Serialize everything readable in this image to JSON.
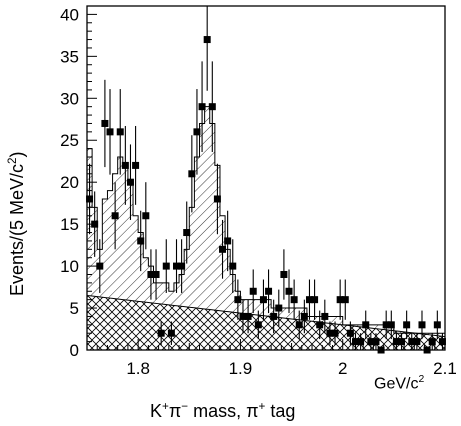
{
  "chart_data": {
    "type": "histogram_with_points",
    "xlabel_unit": "GeV/c²",
    "xtitle": "K⁺π⁻ mass, π⁺ tag",
    "ylabel": "Events/(5 MeV/c²)",
    "xlim": [
      1.75,
      2.1
    ],
    "ylim": [
      0,
      41
    ],
    "xticks": [
      "1.8",
      "1.9",
      "2",
      "2.1"
    ],
    "yticks": [
      "0",
      "5",
      "10",
      "15",
      "20",
      "25",
      "30",
      "35",
      "40"
    ],
    "bin_width": 0.005,
    "data_points": {
      "x": [
        1.7525,
        1.7575,
        1.7625,
        1.7675,
        1.7725,
        1.7775,
        1.7825,
        1.7875,
        1.7925,
        1.7975,
        1.8025,
        1.8075,
        1.8125,
        1.8175,
        1.8225,
        1.8275,
        1.8325,
        1.8375,
        1.8425,
        1.8475,
        1.8525,
        1.8575,
        1.8625,
        1.8675,
        1.8725,
        1.8775,
        1.8825,
        1.8875,
        1.8925,
        1.8975,
        1.9025,
        1.9075,
        1.9125,
        1.9175,
        1.9225,
        1.9275,
        1.9325,
        1.9375,
        1.9425,
        1.9475,
        1.9525,
        1.9575,
        1.9625,
        1.9675,
        1.9725,
        1.9775,
        1.9825,
        1.9875,
        1.9925,
        1.9975,
        2.0025,
        2.0075,
        2.0125,
        2.0175,
        2.0225,
        2.0275,
        2.0325,
        2.0375,
        2.0425,
        2.0475,
        2.0525,
        2.0575,
        2.0625,
        2.0675,
        2.0725,
        2.0775,
        2.0825,
        2.0875,
        2.0925,
        2.0975
      ],
      "y": [
        18,
        15,
        10,
        27,
        26,
        16,
        26,
        22,
        20,
        22,
        13,
        16,
        9,
        9,
        2,
        10,
        2,
        10,
        10,
        14,
        21,
        26,
        29,
        37,
        29,
        18,
        12,
        13,
        10,
        6,
        4,
        4,
        7,
        3,
        6,
        7,
        4,
        5,
        9,
        7,
        6,
        3,
        4,
        6,
        6,
        3,
        4,
        2,
        2,
        6,
        6,
        2,
        1,
        1,
        3,
        1,
        1,
        0,
        3,
        3,
        1,
        1,
        3,
        1,
        1,
        3,
        0,
        1,
        3,
        1
      ],
      "errors": [
        4.2,
        3.9,
        3.2,
        5.2,
        5.1,
        4,
        5.1,
        4.7,
        4.5,
        4.7,
        3.6,
        4,
        3,
        3,
        1.4,
        3.2,
        1.4,
        3.2,
        3.2,
        3.7,
        4.6,
        5.1,
        5.4,
        6.1,
        5.4,
        4.2,
        3.5,
        3.6,
        3.2,
        2.4,
        2,
        2,
        2.6,
        1.7,
        2.4,
        2.6,
        2,
        2.2,
        3,
        2.6,
        2.4,
        1.7,
        2,
        2.4,
        2.4,
        1.7,
        2,
        1.4,
        1.4,
        2.4,
        2.4,
        1.4,
        1,
        1,
        1.7,
        1,
        1,
        0,
        1.7,
        1.7,
        1,
        1,
        1.7,
        1,
        1,
        1.7,
        0,
        1,
        1.7,
        1
      ]
    },
    "fit_total": [
      24,
      17,
      12,
      18,
      19,
      21,
      23,
      22,
      20,
      16,
      14,
      11,
      10,
      8,
      8,
      8,
      7,
      8,
      9,
      12,
      17,
      23,
      27,
      29,
      27,
      22,
      16,
      12,
      9,
      7,
      6,
      6,
      6,
      6,
      6,
      6,
      5,
      5,
      5,
      5,
      5,
      5,
      5,
      4,
      4,
      4,
      4,
      4,
      4,
      4,
      3,
      3,
      3,
      3,
      3,
      3,
      3,
      3,
      3,
      3,
      2,
      2,
      2,
      2,
      2,
      2,
      2,
      2,
      2,
      2
    ],
    "background_start": 6.5,
    "background_end": 1.6
  }
}
